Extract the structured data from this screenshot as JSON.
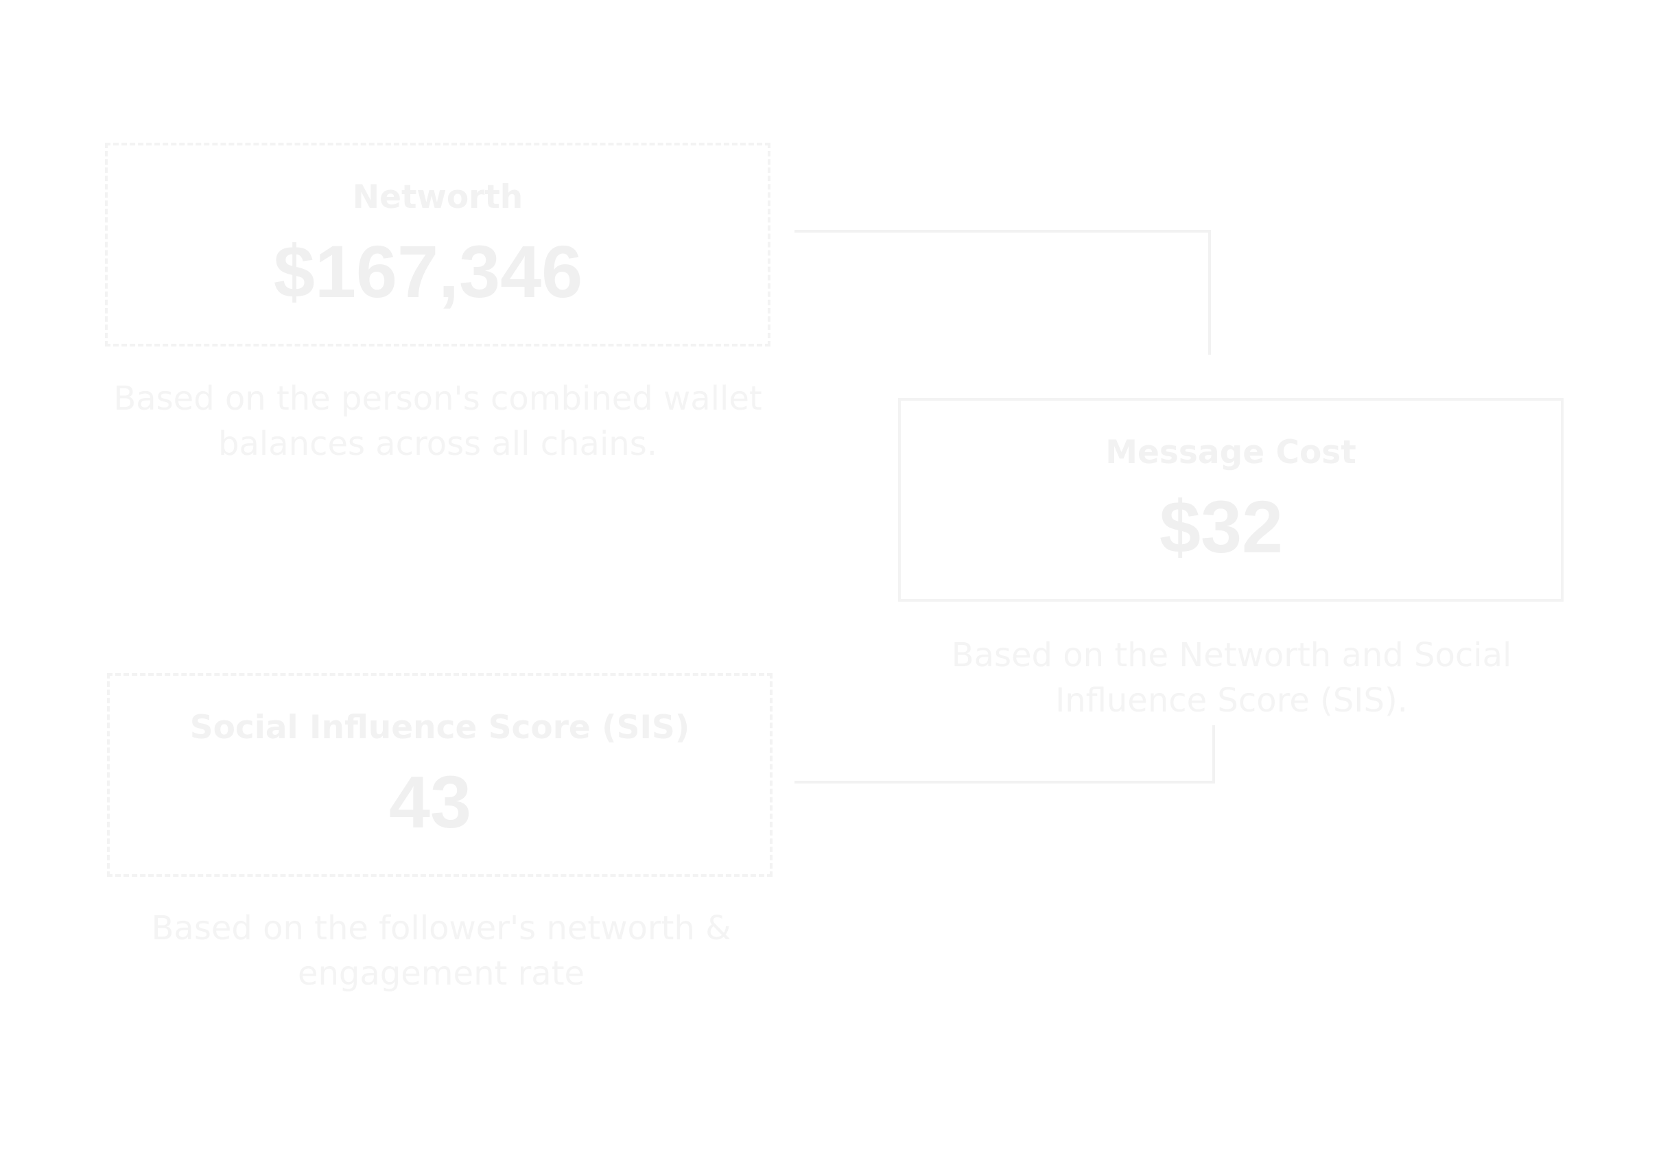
{
  "networth": {
    "title": "Networth",
    "value": "$167,346",
    "caption": "Based on the person's combined wallet balances across all chains."
  },
  "message_cost": {
    "title": "Message Cost",
    "value": "$32",
    "caption": "Based on the Networth and Social Influence Score (SIS)."
  },
  "sis": {
    "title": "Social Influence Score (SIS)",
    "value": "43",
    "caption": "Based on the follower's networth & engagement rate"
  },
  "colors": {
    "background": "#ffffff",
    "foreground": "#f2f2f2"
  }
}
